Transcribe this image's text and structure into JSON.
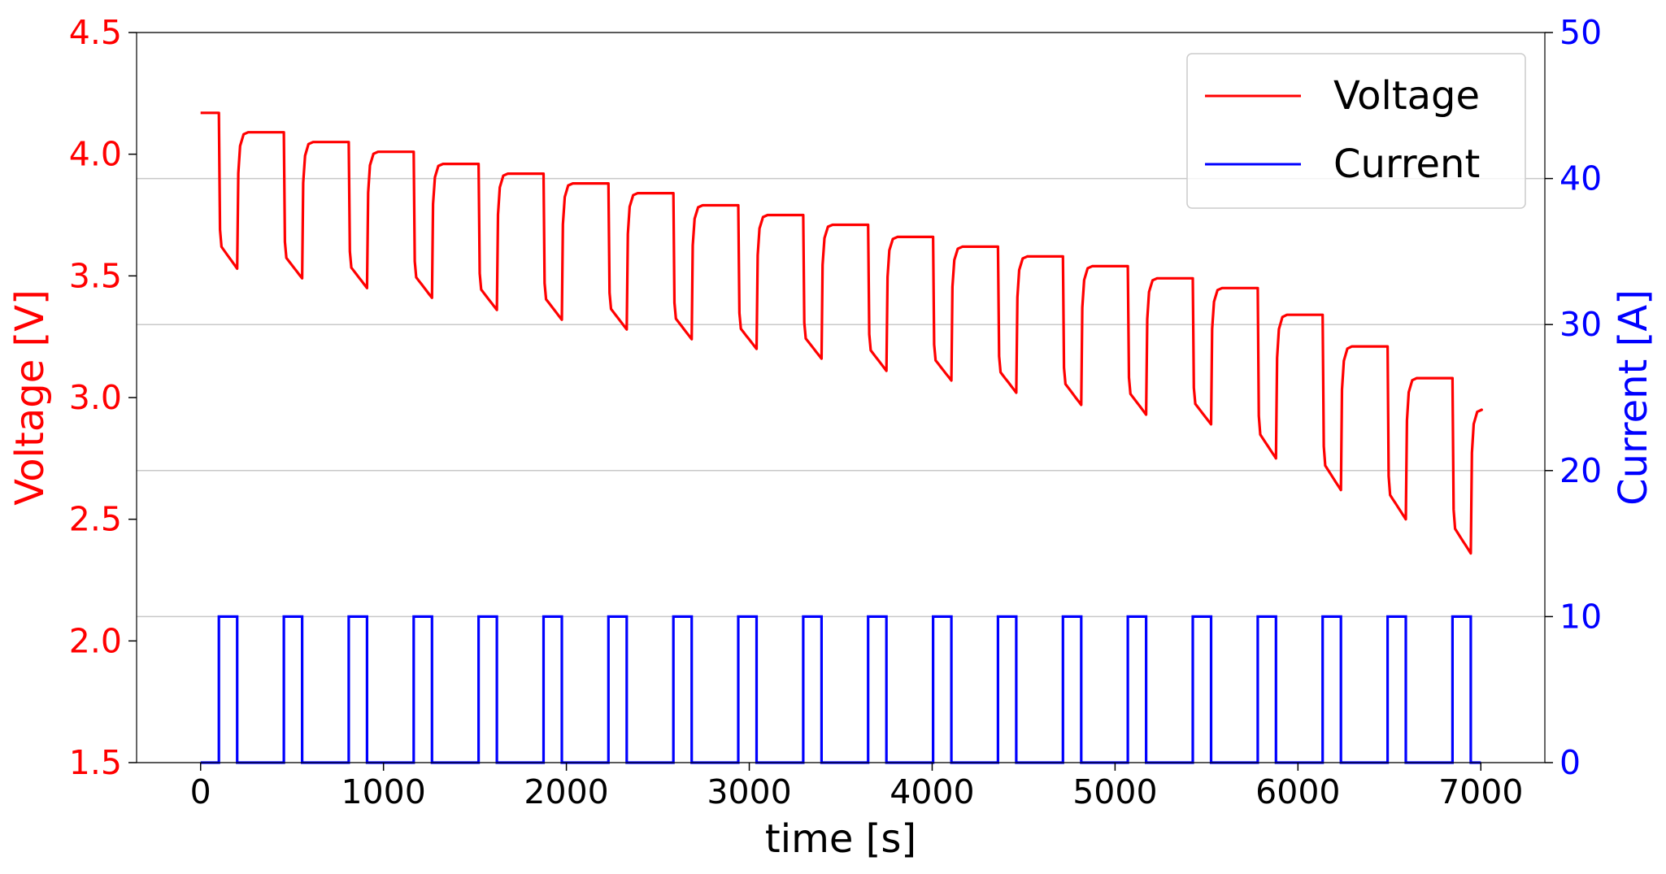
{
  "chart_data": {
    "type": "line",
    "xlabel": "time [s]",
    "ylabel_left": "Voltage [V]",
    "ylabel_right": "Current [A]",
    "xlim": [
      -350,
      7350
    ],
    "ylim_left": [
      1.5,
      4.5
    ],
    "ylim_right": [
      0,
      50
    ],
    "x_ticks": [
      "0",
      "1000",
      "2000",
      "3000",
      "4000",
      "5000",
      "6000",
      "7000"
    ],
    "y_left_ticks": [
      "1.5",
      "2.0",
      "2.5",
      "3.0",
      "3.5",
      "4.0",
      "4.5"
    ],
    "y_right_ticks": [
      "0",
      "10",
      "20",
      "30",
      "40",
      "50"
    ],
    "grid": "horizontal (right axis)",
    "legend_position": "top-right",
    "colors": {
      "left_axis": "#ff0000",
      "right_axis": "#0000ff",
      "voltage": "#ff0000",
      "current": "#0000ff"
    },
    "pulse_width_s": 100,
    "pulse_current_A": 10,
    "rest_current_A": 0,
    "pulse_start_times_s": [
      100,
      455,
      810,
      1165,
      1520,
      1875,
      2230,
      2585,
      2940,
      3295,
      3650,
      4005,
      4360,
      4715,
      5070,
      5425,
      5780,
      6135,
      6490,
      6845
    ],
    "rest_voltage_V": [
      4.17,
      4.09,
      4.05,
      4.01,
      3.96,
      3.92,
      3.88,
      3.84,
      3.79,
      3.75,
      3.71,
      3.66,
      3.62,
      3.58,
      3.54,
      3.49,
      3.45,
      3.34,
      3.21,
      3.08,
      2.95
    ],
    "pulse_end_voltage_V": [
      3.53,
      3.49,
      3.45,
      3.41,
      3.36,
      3.32,
      3.28,
      3.24,
      3.2,
      3.16,
      3.11,
      3.07,
      3.02,
      2.97,
      2.93,
      2.89,
      2.75,
      2.62,
      2.5,
      2.36
    ],
    "series": [
      {
        "name": "Voltage",
        "axis": "left"
      },
      {
        "name": "Current",
        "axis": "right"
      }
    ],
    "t_end_s": 7000
  }
}
